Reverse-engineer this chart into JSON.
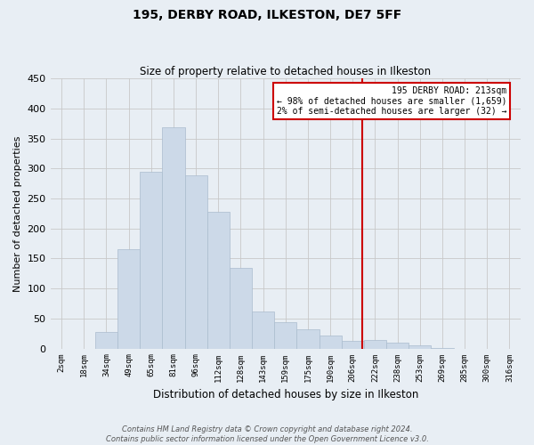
{
  "title": "195, DERBY ROAD, ILKESTON, DE7 5FF",
  "subtitle": "Size of property relative to detached houses in Ilkeston",
  "xlabel": "Distribution of detached houses by size in Ilkeston",
  "ylabel": "Number of detached properties",
  "bar_labels": [
    "2sqm",
    "18sqm",
    "34sqm",
    "49sqm",
    "65sqm",
    "81sqm",
    "96sqm",
    "112sqm",
    "128sqm",
    "143sqm",
    "159sqm",
    "175sqm",
    "190sqm",
    "206sqm",
    "222sqm",
    "238sqm",
    "253sqm",
    "269sqm",
    "285sqm",
    "300sqm",
    "316sqm"
  ],
  "bar_heights": [
    0,
    0,
    28,
    165,
    295,
    368,
    288,
    228,
    135,
    62,
    44,
    32,
    22,
    13,
    14,
    10,
    5,
    1,
    0,
    0,
    0
  ],
  "bar_color": "#ccd9e8",
  "bar_edge_color": "#aabcce",
  "grid_color": "#c8c8c8",
  "background_color": "#e8eef4",
  "vline_color": "#cc0000",
  "annotation_title": "195 DERBY ROAD: 213sqm",
  "annotation_line1": "← 98% of detached houses are smaller (1,659)",
  "annotation_line2": "2% of semi-detached houses are larger (32) →",
  "annotation_box_facecolor": "#ffffff",
  "annotation_border_color": "#cc0000",
  "ylim": [
    0,
    450
  ],
  "yticks": [
    0,
    50,
    100,
    150,
    200,
    250,
    300,
    350,
    400,
    450
  ],
  "footnote1": "Contains HM Land Registry data © Crown copyright and database right 2024.",
  "footnote2": "Contains public sector information licensed under the Open Government Licence v3.0."
}
